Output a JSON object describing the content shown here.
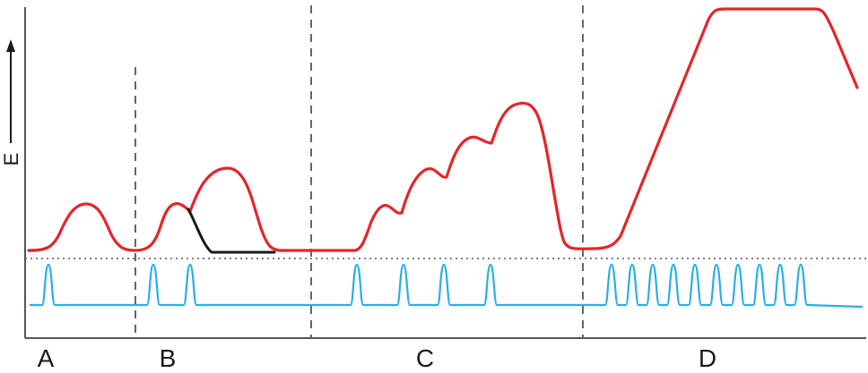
{
  "axis": {
    "y_label": "E"
  },
  "regions": [
    {
      "id": "a",
      "label": "A"
    },
    {
      "id": "b",
      "label": "B"
    },
    {
      "id": "c",
      "label": "C"
    },
    {
      "id": "d",
      "label": "D"
    }
  ],
  "colors": {
    "potential_trace": "#e2262b",
    "stimulus_trace": "#29aee6",
    "alternate_decay": "#1a1a1a",
    "axis": "#555555",
    "divider": "#666666",
    "threshold": "#555555"
  }
}
